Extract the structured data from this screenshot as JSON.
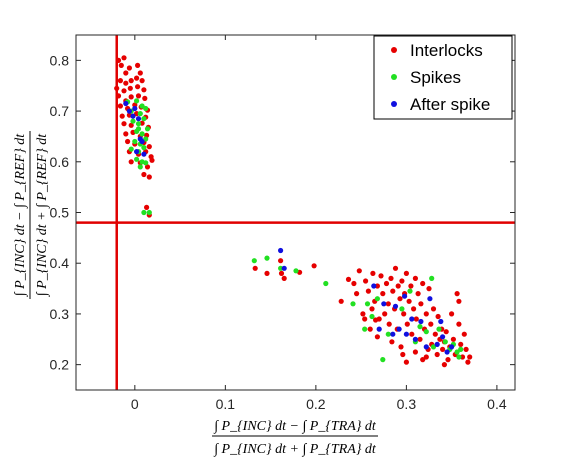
{
  "chart_data": {
    "type": "scatter",
    "title": "",
    "xlabel": {
      "numerator": "∫ P_{INC} dt − ∫ P_{TRA} dt",
      "denominator": "∫ P_{INC} dt + ∫ P_{TRA} dt"
    },
    "ylabel": {
      "numerator": "∫ P_{INC} dt − ∫ P_{REF} dt",
      "denominator": "∫ P_{INC} dt + ∫ P_{REF} dt"
    },
    "xlim": [
      -0.065,
      0.42
    ],
    "ylim": [
      0.15,
      0.85
    ],
    "xticks": [
      "0",
      "0.1",
      "0.2",
      "0.3",
      "0.4"
    ],
    "yticks": [
      "0.2",
      "0.3",
      "0.4",
      "0.5",
      "0.6",
      "0.7",
      "0.8"
    ],
    "xtick_values": [
      0,
      0.1,
      0.2,
      0.3,
      0.4
    ],
    "ytick_values": [
      0.2,
      0.3,
      0.4,
      0.5,
      0.6,
      0.7,
      0.8
    ],
    "grid": false,
    "legend_position": "top-right",
    "reference_lines": [
      {
        "orientation": "vertical",
        "x": -0.02,
        "color": "#e00000"
      },
      {
        "orientation": "horizontal",
        "y": 0.48,
        "color": "#e00000"
      }
    ],
    "series": [
      {
        "name": "Interlocks",
        "color": "#e60000",
        "points": [
          [
            -0.018,
            0.8
          ],
          [
            -0.012,
            0.805
          ],
          [
            -0.015,
            0.79
          ],
          [
            -0.01,
            0.775
          ],
          [
            -0.006,
            0.785
          ],
          [
            0.003,
            0.79
          ],
          [
            0.006,
            0.775
          ],
          [
            -0.016,
            0.76
          ],
          [
            -0.01,
            0.755
          ],
          [
            -0.004,
            0.76
          ],
          [
            0.002,
            0.765
          ],
          [
            0.008,
            0.76
          ],
          [
            -0.02,
            0.745
          ],
          [
            -0.012,
            0.74
          ],
          [
            -0.005,
            0.745
          ],
          [
            0.003,
            0.748
          ],
          [
            0.01,
            0.742
          ],
          [
            -0.018,
            0.73
          ],
          [
            -0.01,
            0.72
          ],
          [
            -0.004,
            0.728
          ],
          [
            0.004,
            0.73
          ],
          [
            0.011,
            0.725
          ],
          [
            -0.016,
            0.71
          ],
          [
            -0.008,
            0.705
          ],
          [
            0.0,
            0.712
          ],
          [
            0.007,
            0.708
          ],
          [
            0.014,
            0.702
          ],
          [
            -0.014,
            0.69
          ],
          [
            -0.006,
            0.692
          ],
          [
            0.002,
            0.695
          ],
          [
            0.012,
            0.688
          ],
          [
            -0.012,
            0.675
          ],
          [
            -0.004,
            0.672
          ],
          [
            0.008,
            0.676
          ],
          [
            0.015,
            0.668
          ],
          [
            -0.01,
            0.655
          ],
          [
            -0.002,
            0.658
          ],
          [
            0.006,
            0.65
          ],
          [
            0.013,
            0.652
          ],
          [
            -0.008,
            0.64
          ],
          [
            0.0,
            0.635
          ],
          [
            0.01,
            0.638
          ],
          [
            0.016,
            0.63
          ],
          [
            -0.006,
            0.62
          ],
          [
            0.004,
            0.615
          ],
          [
            0.012,
            0.62
          ],
          [
            0.018,
            0.61
          ],
          [
            -0.004,
            0.6
          ],
          [
            0.006,
            0.598
          ],
          [
            0.014,
            0.59
          ],
          [
            0.019,
            0.603
          ],
          [
            0.01,
            0.575
          ],
          [
            0.016,
            0.57
          ],
          [
            0.013,
            0.51
          ],
          [
            0.016,
            0.495
          ],
          [
            0.133,
            0.39
          ],
          [
            0.146,
            0.38
          ],
          [
            0.162,
            0.38
          ],
          [
            0.161,
            0.405
          ],
          [
            0.182,
            0.382
          ],
          [
            0.198,
            0.395
          ],
          [
            0.165,
            0.37
          ],
          [
            0.228,
            0.325
          ],
          [
            0.236,
            0.368
          ],
          [
            0.242,
            0.36
          ],
          [
            0.245,
            0.34
          ],
          [
            0.248,
            0.385
          ],
          [
            0.252,
            0.3
          ],
          [
            0.255,
            0.365
          ],
          [
            0.258,
            0.345
          ],
          [
            0.262,
            0.31
          ],
          [
            0.263,
            0.38
          ],
          [
            0.265,
            0.325
          ],
          [
            0.268,
            0.355
          ],
          [
            0.27,
            0.29
          ],
          [
            0.272,
            0.375
          ],
          [
            0.274,
            0.34
          ],
          [
            0.276,
            0.3
          ],
          [
            0.278,
            0.36
          ],
          [
            0.28,
            0.32
          ],
          [
            0.281,
            0.28
          ],
          [
            0.283,
            0.37
          ],
          [
            0.285,
            0.345
          ],
          [
            0.287,
            0.31
          ],
          [
            0.288,
            0.39
          ],
          [
            0.29,
            0.27
          ],
          [
            0.291,
            0.355
          ],
          [
            0.293,
            0.33
          ],
          [
            0.295,
            0.365
          ],
          [
            0.297,
            0.3
          ],
          [
            0.298,
            0.34
          ],
          [
            0.3,
            0.38
          ],
          [
            0.301,
            0.28
          ],
          [
            0.303,
            0.325
          ],
          [
            0.305,
            0.355
          ],
          [
            0.306,
            0.26
          ],
          [
            0.308,
            0.31
          ],
          [
            0.31,
            0.37
          ],
          [
            0.311,
            0.29
          ],
          [
            0.313,
            0.34
          ],
          [
            0.315,
            0.25
          ],
          [
            0.316,
            0.32
          ],
          [
            0.318,
            0.36
          ],
          [
            0.32,
            0.27
          ],
          [
            0.322,
            0.3
          ],
          [
            0.324,
            0.23
          ],
          [
            0.325,
            0.35
          ],
          [
            0.327,
            0.28
          ],
          [
            0.328,
            0.24
          ],
          [
            0.33,
            0.31
          ],
          [
            0.332,
            0.26
          ],
          [
            0.334,
            0.22
          ],
          [
            0.335,
            0.295
          ],
          [
            0.337,
            0.25
          ],
          [
            0.339,
            0.27
          ],
          [
            0.34,
            0.23
          ],
          [
            0.342,
            0.245
          ],
          [
            0.344,
            0.265
          ],
          [
            0.346,
            0.21
          ],
          [
            0.348,
            0.235
          ],
          [
            0.35,
            0.3
          ],
          [
            0.352,
            0.25
          ],
          [
            0.354,
            0.22
          ],
          [
            0.356,
            0.34
          ],
          [
            0.358,
            0.28
          ],
          [
            0.36,
            0.24
          ],
          [
            0.362,
            0.215
          ],
          [
            0.364,
            0.26
          ],
          [
            0.366,
            0.23
          ],
          [
            0.368,
            0.205
          ],
          [
            0.37,
            0.215
          ],
          [
            0.358,
            0.325
          ],
          [
            0.342,
            0.2
          ],
          [
            0.318,
            0.21
          ],
          [
            0.3,
            0.205
          ],
          [
            0.296,
            0.22
          ],
          [
            0.284,
            0.245
          ],
          [
            0.268,
            0.255
          ],
          [
            0.26,
            0.27
          ],
          [
            0.31,
            0.225
          ],
          [
            0.322,
            0.215
          ],
          [
            0.294,
            0.235
          ],
          [
            0.266,
            0.288
          ],
          [
            0.254,
            0.29
          ]
        ]
      },
      {
        "name": "Spikes",
        "color": "#22e022",
        "points": [
          [
            -0.008,
            0.718
          ],
          [
            0.002,
            0.72
          ],
          [
            0.008,
            0.71
          ],
          [
            -0.004,
            0.7
          ],
          [
            0.006,
            0.695
          ],
          [
            0.012,
            0.705
          ],
          [
            -0.002,
            0.68
          ],
          [
            0.004,
            0.675
          ],
          [
            0.01,
            0.685
          ],
          [
            0.002,
            0.66
          ],
          [
            0.008,
            0.655
          ],
          [
            0.014,
            0.665
          ],
          [
            0.0,
            0.64
          ],
          [
            0.006,
            0.635
          ],
          [
            0.012,
            0.645
          ],
          [
            -0.004,
            0.625
          ],
          [
            0.004,
            0.62
          ],
          [
            0.01,
            0.628
          ],
          [
            0.002,
            0.605
          ],
          [
            0.008,
            0.6
          ],
          [
            0.006,
            0.59
          ],
          [
            0.012,
            0.598
          ],
          [
            0.01,
            0.5
          ],
          [
            0.016,
            0.5
          ],
          [
            0.004,
            0.665
          ],
          [
            0.132,
            0.405
          ],
          [
            0.146,
            0.41
          ],
          [
            0.161,
            0.39
          ],
          [
            0.178,
            0.385
          ],
          [
            0.211,
            0.36
          ],
          [
            0.241,
            0.32
          ],
          [
            0.254,
            0.27
          ],
          [
            0.257,
            0.32
          ],
          [
            0.262,
            0.295
          ],
          [
            0.268,
            0.33
          ],
          [
            0.274,
            0.21
          ],
          [
            0.28,
            0.26
          ],
          [
            0.295,
            0.31
          ],
          [
            0.304,
            0.345
          ],
          [
            0.31,
            0.245
          ],
          [
            0.315,
            0.275
          ],
          [
            0.322,
            0.265
          ],
          [
            0.328,
            0.37
          ],
          [
            0.33,
            0.235
          ],
          [
            0.336,
            0.27
          ],
          [
            0.343,
            0.245
          ],
          [
            0.348,
            0.23
          ],
          [
            0.352,
            0.24
          ],
          [
            0.356,
            0.225
          ],
          [
            0.358,
            0.215
          ],
          [
            0.36,
            0.23
          ]
        ]
      },
      {
        "name": "After spike",
        "color": "#1010e0",
        "points": [
          [
            -0.01,
            0.715
          ],
          [
            -0.006,
            0.7
          ],
          [
            0.0,
            0.705
          ],
          [
            -0.002,
            0.69
          ],
          [
            0.004,
            0.685
          ],
          [
            0.006,
            0.645
          ],
          [
            0.008,
            0.64
          ],
          [
            0.002,
            0.62
          ],
          [
            0.01,
            0.615
          ],
          [
            0.161,
            0.425
          ],
          [
            0.165,
            0.39
          ],
          [
            0.264,
            0.355
          ],
          [
            0.27,
            0.27
          ],
          [
            0.275,
            0.32
          ],
          [
            0.285,
            0.26
          ],
          [
            0.288,
            0.315
          ],
          [
            0.292,
            0.27
          ],
          [
            0.298,
            0.335
          ],
          [
            0.3,
            0.26
          ],
          [
            0.306,
            0.29
          ],
          [
            0.31,
            0.25
          ],
          [
            0.316,
            0.285
          ],
          [
            0.322,
            0.235
          ],
          [
            0.326,
            0.33
          ],
          [
            0.334,
            0.24
          ],
          [
            0.338,
            0.285
          ],
          [
            0.34,
            0.255
          ],
          [
            0.345,
            0.225
          ],
          [
            0.35,
            0.235
          ]
        ]
      }
    ]
  }
}
